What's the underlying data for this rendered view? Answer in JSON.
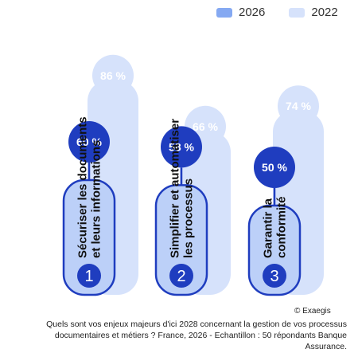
{
  "chart_data": {
    "type": "bar",
    "categories": [
      "Sécuriser les documents et leurs informations",
      "Simplifier et automatiser les processus",
      "Garantir la conformité"
    ],
    "category_lines": [
      [
        "Sécuriser les documents",
        "et leurs informations"
      ],
      [
        "Simplifier et automatiser",
        "les processus"
      ],
      [
        "Garantir la",
        "conformité"
      ]
    ],
    "numbers": [
      "1",
      "2",
      "3"
    ],
    "series": [
      {
        "name": "2026",
        "values": [
          60,
          58,
          50
        ],
        "labels": [
          "60 %",
          "58 %",
          "50 %"
        ],
        "color": "#1f3dbf"
      },
      {
        "name": "2022",
        "values": [
          86,
          66,
          74
        ],
        "labels": [
          "86 %",
          "66 %",
          "74 %"
        ],
        "color": "#d6e2fb"
      }
    ],
    "ylim": [
      0,
      100
    ]
  },
  "legend": [
    {
      "label": "2026",
      "color": "#85a9f2"
    },
    {
      "label": "2022",
      "color": "#d6e2fb"
    }
  ],
  "colors": {
    "bar_2026": "#bcd0f8",
    "bar_2022": "#d6e2fb",
    "bubble_2026": "#1f3dbf",
    "bubble_2022": "#d6e2fb",
    "outline": "#1f3dbf"
  },
  "copyright": "© Exaegis",
  "footnote": "Quels sont vos enjeux majeurs d'ici 2028 concernant la gestion de vos processus documentaires et métiers ? France, 2026 - Echantillon : 50 répondants Banque Assurance."
}
